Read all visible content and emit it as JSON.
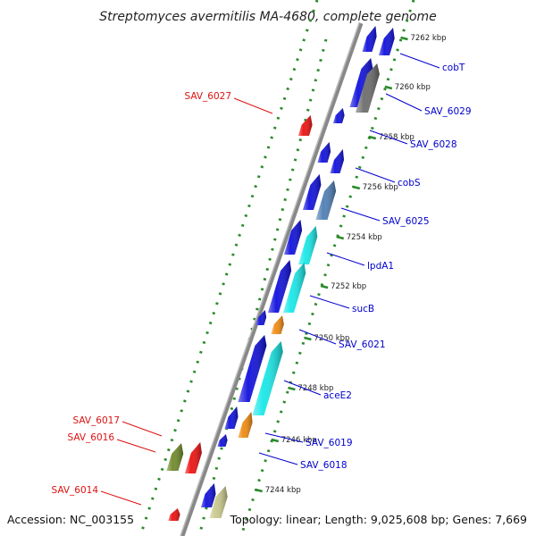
{
  "title": "Streptomyces avermitilis MA-4680, complete genome",
  "footer": {
    "accession": "Accession: NC_003155",
    "summary": "Topology: linear; Length: 9,025,608 bp; Genes: 7,669"
  },
  "colors": {
    "backbone": "#888888",
    "tick": "#2a8a2a",
    "forward_label": "#0000cc",
    "reverse_label": "#dd1111"
  },
  "kbp_ticks": [
    "7244 kbp",
    "7246 kbp",
    "7248 kbp",
    "7250 kbp",
    "7252 kbp",
    "7254 kbp",
    "7256 kbp",
    "7258 kbp",
    "7260 kbp",
    "7262 kbp"
  ],
  "forward_genes": [
    {
      "label": "cobT",
      "color": "#1010dd"
    },
    {
      "label": "SAV_6029",
      "color": "#6c6c6c"
    },
    {
      "label": "SAV_6028",
      "color": "#1010dd"
    },
    {
      "label": "cobS",
      "color": "#1010dd"
    },
    {
      "label": "SAV_6025",
      "color": "#4f7fb5"
    },
    {
      "label": "lpdA1",
      "color": "#18e8e8"
    },
    {
      "label": "sucB",
      "color": "#18e8e8"
    },
    {
      "label": "SAV_6021",
      "color": "#f08a10"
    },
    {
      "label": "aceE2",
      "color": "#18e8e8"
    },
    {
      "label": "SAV_6019",
      "color": "#f08a10"
    },
    {
      "label": "SAV_6018",
      "color": "#1010dd"
    }
  ],
  "reverse_genes": [
    {
      "label": "SAV_6027",
      "color": "#ee1111"
    },
    {
      "label": "SAV_6017",
      "color": "#ee1111"
    },
    {
      "label": "SAV_6016",
      "color": "#6f8a2a"
    },
    {
      "label": "SAV_6014",
      "color": "#ee1111"
    }
  ]
}
